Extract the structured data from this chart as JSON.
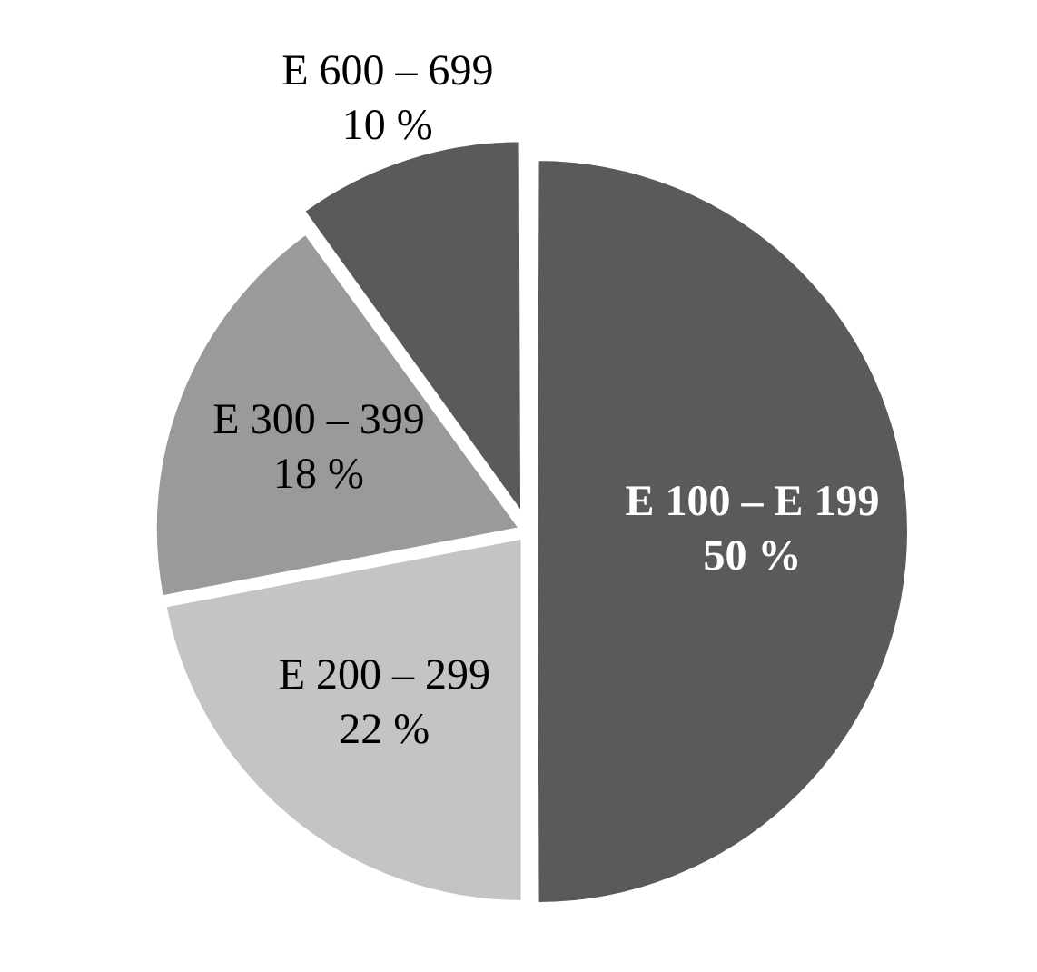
{
  "chart_data": {
    "type": "pie",
    "categories": [
      "E 100 – E 199",
      "E 200 – 299",
      "E 300 – 399",
      "E 600 – 699"
    ],
    "values": [
      50,
      22,
      18,
      10
    ],
    "colors": [
      "#5a5a5a",
      "#c4c4c4",
      "#9a9a9a",
      "#5a5a5a"
    ],
    "value_labels": [
      "50 %",
      "22 %",
      "18 %",
      "10 %"
    ],
    "legend": false
  }
}
